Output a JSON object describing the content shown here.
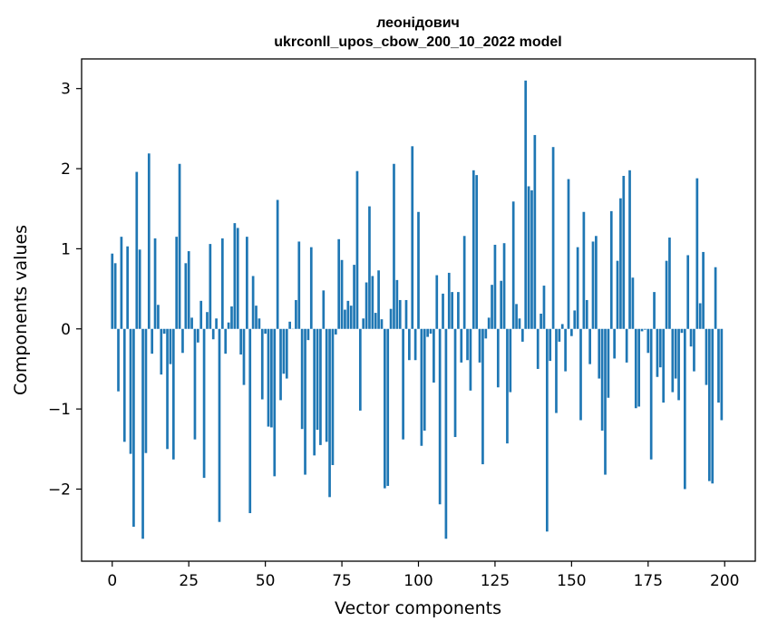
{
  "chart_data": {
    "type": "bar",
    "title": "леонідович",
    "subtitle": "ukrconll_upos_cbow_200_10_2022 model",
    "xlabel": "Vector components",
    "ylabel": "Components values",
    "xlim": [
      -10,
      210
    ],
    "ylim": [
      -2.9,
      3.37
    ],
    "xticks": [
      0,
      25,
      50,
      75,
      100,
      125,
      150,
      175,
      200
    ],
    "yticks": [
      -2,
      -1,
      0,
      1,
      2,
      3
    ],
    "ytick_labels": [
      "−2",
      "−1",
      "0",
      "1",
      "2",
      "3"
    ],
    "bar_color": "#1f77b4",
    "grid": false,
    "legend": "none",
    "x": [
      0,
      1,
      2,
      3,
      4,
      5,
      6,
      7,
      8,
      9,
      10,
      11,
      12,
      13,
      14,
      15,
      16,
      17,
      18,
      19,
      20,
      21,
      22,
      23,
      24,
      25,
      26,
      27,
      28,
      29,
      30,
      31,
      32,
      33,
      34,
      35,
      36,
      37,
      38,
      39,
      40,
      41,
      42,
      43,
      44,
      45,
      46,
      47,
      48,
      49,
      50,
      51,
      52,
      53,
      54,
      55,
      56,
      57,
      58,
      59,
      60,
      61,
      62,
      63,
      64,
      65,
      66,
      67,
      68,
      69,
      70,
      71,
      72,
      73,
      74,
      75,
      76,
      77,
      78,
      79,
      80,
      81,
      82,
      83,
      84,
      85,
      86,
      87,
      88,
      89,
      90,
      91,
      92,
      93,
      94,
      95,
      96,
      97,
      98,
      99,
      100,
      101,
      102,
      103,
      104,
      105,
      106,
      107,
      108,
      109,
      110,
      111,
      112,
      113,
      114,
      115,
      116,
      117,
      118,
      119,
      120,
      121,
      122,
      123,
      124,
      125,
      126,
      127,
      128,
      129,
      130,
      131,
      132,
      133,
      134,
      135,
      136,
      137,
      138,
      139,
      140,
      141,
      142,
      143,
      144,
      145,
      146,
      147,
      148,
      149,
      150,
      151,
      152,
      153,
      154,
      155,
      156,
      157,
      158,
      159,
      160,
      161,
      162,
      163,
      164,
      165,
      166,
      167,
      168,
      169,
      170,
      171,
      172,
      173,
      174,
      175,
      176,
      177,
      178,
      179,
      180,
      181,
      182,
      183,
      184,
      185,
      186,
      187,
      188,
      189,
      190,
      191,
      192,
      193,
      194,
      195,
      196,
      197,
      198,
      199
    ],
    "values": [
      0.94,
      0.82,
      -0.78,
      1.15,
      -1.41,
      1.03,
      -1.56,
      -2.47,
      1.96,
      0.99,
      -2.62,
      -1.55,
      2.19,
      -0.31,
      1.13,
      0.3,
      -0.57,
      -0.06,
      -1.5,
      -0.44,
      -1.63,
      1.15,
      2.06,
      -0.3,
      0.82,
      0.97,
      0.14,
      -1.38,
      -0.17,
      0.35,
      -1.86,
      0.21,
      1.06,
      -0.13,
      0.13,
      -2.41,
      1.13,
      -0.31,
      0.08,
      0.28,
      1.32,
      1.26,
      -0.32,
      -0.7,
      1.15,
      -2.3,
      0.66,
      0.29,
      0.13,
      -0.88,
      -0.06,
      -1.22,
      -1.23,
      -1.84,
      1.61,
      -0.89,
      -0.56,
      -0.62,
      0.09,
      0.0,
      0.36,
      1.09,
      -1.25,
      -1.82,
      -0.14,
      1.02,
      -1.58,
      -1.26,
      -1.45,
      0.48,
      -1.41,
      -2.1,
      -1.7,
      -0.07,
      1.12,
      0.86,
      0.24,
      0.35,
      0.29,
      0.8,
      1.97,
      -1.02,
      0.13,
      0.58,
      1.53,
      0.66,
      0.2,
      0.73,
      0.12,
      -1.99,
      -1.96,
      0.25,
      2.06,
      0.61,
      0.36,
      -1.38,
      0.36,
      -0.39,
      2.28,
      -0.39,
      1.46,
      -1.46,
      -1.27,
      -0.1,
      -0.06,
      -0.67,
      0.67,
      -2.19,
      0.44,
      -2.62,
      0.7,
      0.46,
      -1.35,
      0.46,
      -0.42,
      1.16,
      -0.39,
      -0.77,
      1.98,
      1.92,
      -0.42,
      -1.69,
      -0.12,
      0.14,
      0.55,
      1.05,
      -0.73,
      0.6,
      1.07,
      -1.43,
      -0.79,
      1.59,
      0.31,
      0.13,
      -0.16,
      3.1,
      1.78,
      1.73,
      2.42,
      -0.5,
      0.19,
      0.54,
      -2.53,
      -0.4,
      2.27,
      -1.05,
      -0.16,
      0.06,
      -0.53,
      1.87,
      -0.09,
      0.23,
      1.02,
      -1.14,
      1.46,
      0.36,
      -0.44,
      1.09,
      1.16,
      -0.62,
      -1.27,
      -1.82,
      -0.86,
      1.47,
      -0.37,
      0.85,
      1.63,
      1.91,
      -0.42,
      1.98,
      0.64,
      -0.99,
      -0.97,
      -0.03,
      -0.01,
      -0.3,
      -1.63,
      0.46,
      -0.6,
      -0.48,
      -0.92,
      0.85,
      1.14,
      -0.79,
      -0.62,
      -0.89,
      -0.05,
      -2.0,
      0.92,
      -0.22,
      -0.53,
      1.88,
      0.32,
      0.96,
      -0.7,
      -1.9,
      -1.93,
      0.77,
      -0.92,
      -1.14
    ]
  }
}
